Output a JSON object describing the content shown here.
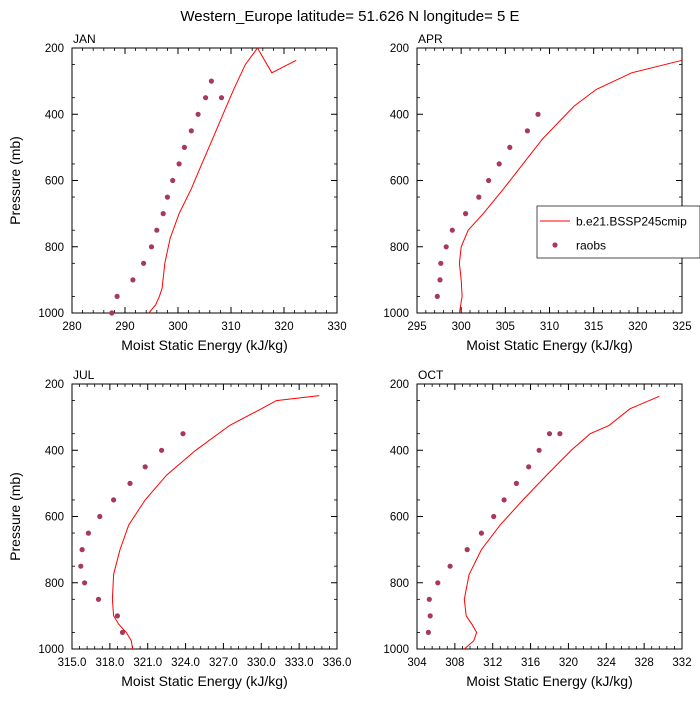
{
  "title": "Western_Europe  latitude= 51.626 N longitude= 5 E",
  "legend": {
    "entries": [
      {
        "label": "b.e21.BSSP245cmip",
        "kind": "line",
        "color": "#ff0000"
      },
      {
        "label": "raobs",
        "kind": "marker",
        "color": "#a8385c"
      }
    ],
    "placement": "right, inside APR panel"
  },
  "colors": {
    "model_line": "#ff0000",
    "raobs_marker": "#a8385c"
  },
  "chart_data": [
    {
      "type": "line",
      "panel": "JAN",
      "xlabel": "Moist Static Energy (kJ/kg)",
      "ylabel": "Pressure (mb)",
      "xlim": [
        280,
        330
      ],
      "ylim": [
        1000,
        200
      ],
      "y_axis_reversed": true,
      "x_ticks": [
        280,
        290,
        300,
        310,
        320,
        330
      ],
      "x_tick_labels": [
        "280",
        "290",
        "300",
        "310",
        "320",
        "330"
      ],
      "y_ticks": [
        200,
        400,
        600,
        800,
        1000
      ],
      "y_tick_labels": [
        "200",
        "400",
        "600",
        "800",
        "1000"
      ],
      "grid": false,
      "series": [
        {
          "name": "b.e21.BSSP245cmip",
          "style": "line",
          "x": [
            294.5,
            295.8,
            296.5,
            297.0,
            297.5,
            298.5,
            300.2,
            302.5,
            304.5,
            306.5,
            308.5,
            310.5,
            312.7,
            315.0,
            317.7,
            322.3
          ],
          "y": [
            1000,
            975,
            950,
            925,
            850,
            775,
            700,
            625,
            550,
            475,
            400,
            325,
            250,
            200,
            275,
            237
          ]
        },
        {
          "name": "raobs",
          "style": "marker",
          "x": [
            287.5,
            288.5,
            291.5,
            293.5,
            295.0,
            296.0,
            297.2,
            298.0,
            299.0,
            300.2,
            301.2,
            302.5,
            303.8,
            305.2,
            306.3,
            308.2
          ],
          "y": [
            1000,
            950,
            900,
            850,
            800,
            750,
            700,
            650,
            600,
            550,
            500,
            450,
            400,
            350,
            300,
            350
          ]
        }
      ]
    },
    {
      "type": "line",
      "panel": "APR",
      "xlabel": "Moist Static Energy (kJ/kg)",
      "ylabel": "",
      "xlim": [
        295,
        325
      ],
      "ylim": [
        1000,
        200
      ],
      "y_axis_reversed": true,
      "x_ticks": [
        295,
        300,
        305,
        310,
        315,
        320,
        325
      ],
      "x_tick_labels": [
        "295",
        "300",
        "305",
        "310",
        "315",
        "320",
        "325"
      ],
      "y_ticks": [
        200,
        400,
        600,
        800,
        1000
      ],
      "y_tick_labels": [
        "200",
        "400",
        "600",
        "800",
        "1000"
      ],
      "grid": false,
      "series": [
        {
          "name": "b.e21.BSSP245cmip",
          "style": "line",
          "x": [
            299.8,
            300.1,
            300.0,
            299.8,
            300.0,
            300.8,
            302.5,
            304.8,
            307.0,
            309.2,
            311.0,
            312.8,
            315.3,
            319.3,
            325.0
          ],
          "y": [
            1000,
            950,
            900,
            850,
            800,
            750,
            700,
            625,
            550,
            475,
            425,
            375,
            325,
            275,
            237
          ]
        },
        {
          "name": "raobs",
          "style": "marker",
          "x": [
            297.3,
            297.6,
            297.7,
            298.3,
            299.0,
            300.5,
            302.0,
            303.1,
            304.3,
            305.5,
            307.5,
            308.7
          ],
          "y": [
            950,
            900,
            850,
            800,
            750,
            700,
            650,
            600,
            550,
            500,
            450,
            400
          ]
        }
      ]
    },
    {
      "type": "line",
      "panel": "JUL",
      "xlabel": "Moist Static Energy (kJ/kg)",
      "ylabel": "Pressure (mb)",
      "xlim": [
        315,
        336
      ],
      "ylim": [
        1000,
        200
      ],
      "y_axis_reversed": true,
      "x_ticks": [
        315,
        318,
        321,
        324,
        327,
        330,
        333,
        336
      ],
      "x_tick_labels": [
        "315.0",
        "318.0",
        "321.0",
        "324.0",
        "327.0",
        "330.0",
        "333.0",
        "336.0"
      ],
      "y_ticks": [
        200,
        400,
        600,
        800,
        1000
      ],
      "y_tick_labels": [
        "200",
        "400",
        "600",
        "800",
        "1000"
      ],
      "grid": false,
      "series": [
        {
          "name": "b.e21.BSSP245cmip",
          "style": "line",
          "x": [
            319.8,
            319.7,
            319.3,
            318.7,
            318.3,
            318.2,
            318.3,
            318.8,
            319.5,
            320.8,
            322.5,
            324.8,
            327.5,
            330.0,
            331.2,
            334.6
          ],
          "y": [
            1000,
            975,
            950,
            925,
            900,
            850,
            775,
            700,
            625,
            550,
            475,
            400,
            325,
            275,
            250,
            235
          ]
        },
        {
          "name": "raobs",
          "style": "marker",
          "x": [
            319.0,
            318.6,
            317.1,
            316.0,
            315.7,
            315.8,
            316.3,
            317.2,
            318.3,
            319.6,
            320.8,
            322.1,
            323.8
          ],
          "y": [
            950,
            900,
            850,
            800,
            750,
            700,
            650,
            600,
            550,
            500,
            450,
            400,
            350
          ]
        }
      ]
    },
    {
      "type": "line",
      "panel": "OCT",
      "xlabel": "Moist Static Energy (kJ/kg)",
      "ylabel": "",
      "xlim": [
        304,
        332
      ],
      "ylim": [
        1000,
        200
      ],
      "y_axis_reversed": true,
      "x_ticks": [
        304,
        308,
        312,
        316,
        320,
        324,
        328,
        332
      ],
      "x_tick_labels": [
        "304",
        "308",
        "312",
        "316",
        "320",
        "324",
        "328",
        "332"
      ],
      "y_ticks": [
        200,
        400,
        600,
        800,
        1000
      ],
      "y_tick_labels": [
        "200",
        "400",
        "600",
        "800",
        "1000"
      ],
      "grid": false,
      "series": [
        {
          "name": "b.e21.BSSP245cmip",
          "style": "line",
          "x": [
            309.0,
            310.0,
            310.3,
            309.8,
            309.2,
            309.0,
            309.5,
            310.8,
            312.8,
            315.2,
            317.7,
            320.3,
            322.3,
            324.3,
            326.5,
            329.6
          ],
          "y": [
            1000,
            975,
            950,
            925,
            900,
            850,
            775,
            700,
            625,
            550,
            475,
            400,
            350,
            325,
            275,
            237
          ]
        },
        {
          "name": "raobs",
          "style": "marker",
          "x": [
            305.2,
            305.4,
            305.3,
            306.2,
            307.5,
            309.3,
            310.8,
            312.1,
            313.2,
            314.5,
            315.8,
            316.9,
            318.0,
            319.1
          ],
          "y": [
            950,
            900,
            850,
            800,
            750,
            700,
            650,
            600,
            550,
            500,
            450,
            400,
            350,
            350
          ]
        }
      ]
    }
  ]
}
